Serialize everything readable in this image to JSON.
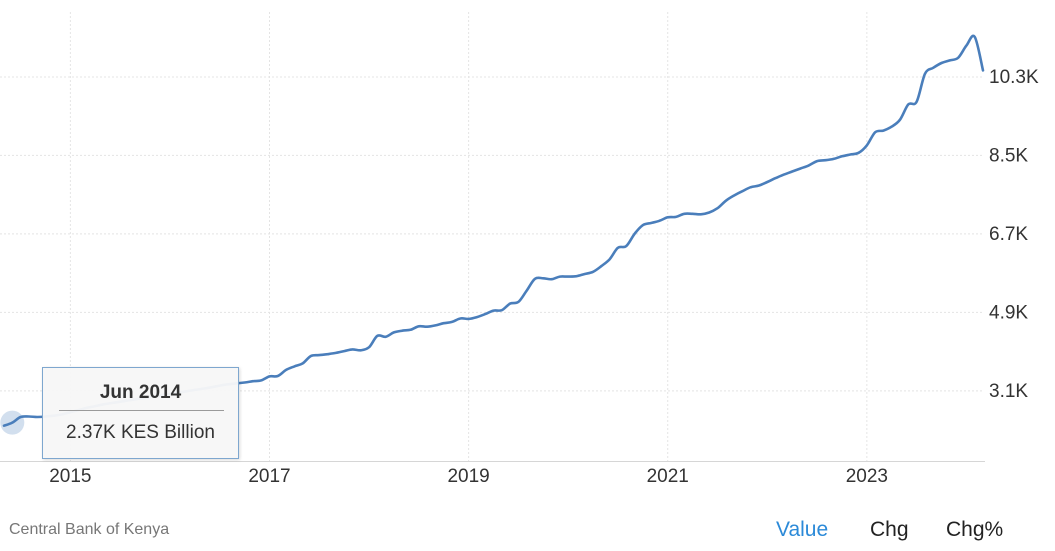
{
  "chart_data": {
    "type": "line",
    "x_unit": "month",
    "y_ticks": [
      3100,
      4900,
      6700,
      8500,
      10300
    ],
    "y_tick_labels": [
      "3.1K",
      "4.9K",
      "6.7K",
      "8.5K",
      "10.3K"
    ],
    "x_ticks": [
      "2015",
      "2017",
      "2019",
      "2021",
      "2023"
    ],
    "ylim": [
      1490,
      11790
    ],
    "xlim": [
      "2014-05",
      "2024-03"
    ],
    "grid": true,
    "series": [
      {
        "color": "#4a7ebb",
        "points": [
          [
            "2014-05",
            2300
          ],
          [
            "2014-06",
            2370
          ],
          [
            "2014-07",
            2500
          ],
          [
            "2014-08",
            2510
          ],
          [
            "2014-09",
            2500
          ],
          [
            "2014-10",
            2510
          ],
          [
            "2014-11",
            2530
          ],
          [
            "2014-12",
            2560
          ],
          [
            "2015-01",
            2610
          ],
          [
            "2015-02",
            2660
          ],
          [
            "2015-03",
            2710
          ],
          [
            "2015-04",
            2750
          ],
          [
            "2015-05",
            2790
          ],
          [
            "2015-06",
            2820
          ],
          [
            "2015-07",
            2850
          ],
          [
            "2015-08",
            2880
          ],
          [
            "2015-09",
            2910
          ],
          [
            "2015-10",
            2940
          ],
          [
            "2015-11",
            2970
          ],
          [
            "2015-12",
            3000
          ],
          [
            "2016-01",
            3030
          ],
          [
            "2016-02",
            3060
          ],
          [
            "2016-03",
            3090
          ],
          [
            "2016-04",
            3120
          ],
          [
            "2016-05",
            3150
          ],
          [
            "2016-06",
            3180
          ],
          [
            "2016-07",
            3220
          ],
          [
            "2016-08",
            3250
          ],
          [
            "2016-09",
            3270
          ],
          [
            "2016-10",
            3290
          ],
          [
            "2016-11",
            3320
          ],
          [
            "2016-12",
            3340
          ],
          [
            "2017-01",
            3430
          ],
          [
            "2017-02",
            3440
          ],
          [
            "2017-03",
            3580
          ],
          [
            "2017-04",
            3660
          ],
          [
            "2017-05",
            3730
          ],
          [
            "2017-06",
            3900
          ],
          [
            "2017-07",
            3920
          ],
          [
            "2017-08",
            3940
          ],
          [
            "2017-09",
            3970
          ],
          [
            "2017-10",
            4010
          ],
          [
            "2017-11",
            4050
          ],
          [
            "2017-12",
            4030
          ],
          [
            "2018-01",
            4100
          ],
          [
            "2018-02",
            4360
          ],
          [
            "2018-03",
            4340
          ],
          [
            "2018-04",
            4440
          ],
          [
            "2018-05",
            4480
          ],
          [
            "2018-06",
            4500
          ],
          [
            "2018-07",
            4580
          ],
          [
            "2018-08",
            4570
          ],
          [
            "2018-09",
            4600
          ],
          [
            "2018-10",
            4650
          ],
          [
            "2018-11",
            4680
          ],
          [
            "2018-12",
            4760
          ],
          [
            "2019-01",
            4750
          ],
          [
            "2019-02",
            4790
          ],
          [
            "2019-03",
            4860
          ],
          [
            "2019-04",
            4940
          ],
          [
            "2019-05",
            4950
          ],
          [
            "2019-06",
            5100
          ],
          [
            "2019-07",
            5140
          ],
          [
            "2019-08",
            5400
          ],
          [
            "2019-09",
            5670
          ],
          [
            "2019-10",
            5680
          ],
          [
            "2019-11",
            5660
          ],
          [
            "2019-12",
            5720
          ],
          [
            "2020-01",
            5720
          ],
          [
            "2020-02",
            5730
          ],
          [
            "2020-03",
            5780
          ],
          [
            "2020-04",
            5830
          ],
          [
            "2020-05",
            5960
          ],
          [
            "2020-06",
            6120
          ],
          [
            "2020-07",
            6380
          ],
          [
            "2020-08",
            6420
          ],
          [
            "2020-09",
            6700
          ],
          [
            "2020-10",
            6900
          ],
          [
            "2020-11",
            6950
          ],
          [
            "2020-12",
            7000
          ],
          [
            "2021-01",
            7080
          ],
          [
            "2021-02",
            7090
          ],
          [
            "2021-03",
            7160
          ],
          [
            "2021-04",
            7160
          ],
          [
            "2021-05",
            7150
          ],
          [
            "2021-06",
            7190
          ],
          [
            "2021-07",
            7290
          ],
          [
            "2021-08",
            7460
          ],
          [
            "2021-09",
            7580
          ],
          [
            "2021-10",
            7680
          ],
          [
            "2021-11",
            7770
          ],
          [
            "2021-12",
            7810
          ],
          [
            "2022-01",
            7890
          ],
          [
            "2022-02",
            7980
          ],
          [
            "2022-03",
            8060
          ],
          [
            "2022-04",
            8130
          ],
          [
            "2022-05",
            8200
          ],
          [
            "2022-06",
            8270
          ],
          [
            "2022-07",
            8370
          ],
          [
            "2022-08",
            8390
          ],
          [
            "2022-09",
            8420
          ],
          [
            "2022-10",
            8480
          ],
          [
            "2022-11",
            8520
          ],
          [
            "2022-12",
            8560
          ],
          [
            "2023-01",
            8730
          ],
          [
            "2023-02",
            9030
          ],
          [
            "2023-03",
            9070
          ],
          [
            "2023-04",
            9160
          ],
          [
            "2023-05",
            9320
          ],
          [
            "2023-06",
            9670
          ],
          [
            "2023-07",
            9730
          ],
          [
            "2023-08",
            10370
          ],
          [
            "2023-09",
            10510
          ],
          [
            "2023-10",
            10620
          ],
          [
            "2023-11",
            10680
          ],
          [
            "2023-12",
            10740
          ],
          [
            "2024-01",
            11020
          ],
          [
            "2024-02",
            11220
          ],
          [
            "2024-03",
            10450
          ]
        ]
      }
    ],
    "tooltip": {
      "x": "2014-06",
      "y": 2370
    }
  },
  "tooltip": {
    "date": "Jun 2014",
    "value": "2.37K KES Billion"
  },
  "footer": {
    "source": "Central Bank of Kenya",
    "toggles": [
      "Value",
      "Chg",
      "Chg%"
    ],
    "active_toggle": "Value"
  },
  "colors": {
    "line": "#4a7ebb",
    "accent": "#2c8ad8"
  }
}
